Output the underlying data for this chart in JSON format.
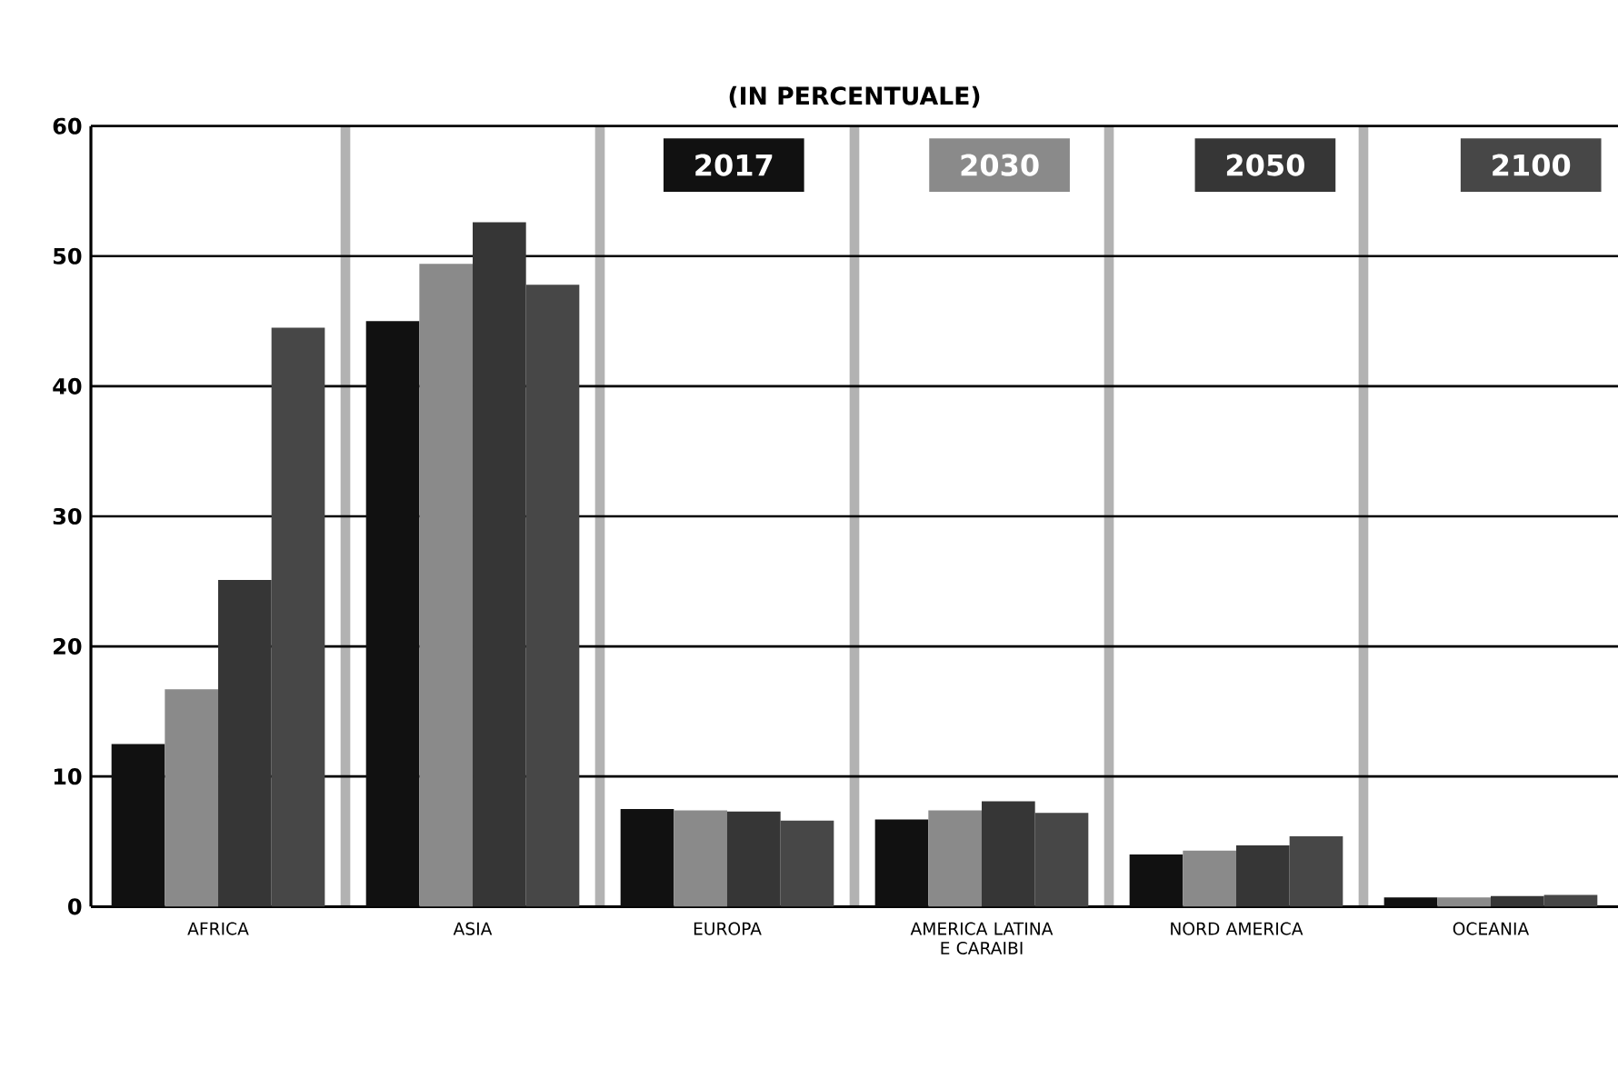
{
  "chart_data": {
    "type": "bar",
    "title": "(IN PERCENTUALE)",
    "categories": [
      "AFRICA",
      "ASIA",
      "EUROPA",
      "AMERICA LATINA E CARAIBI",
      "NORD AMERICA",
      "OCEANIA"
    ],
    "series": [
      {
        "name": "2017",
        "color": "#111111",
        "values": [
          12.5,
          45.0,
          7.5,
          6.7,
          4.0,
          0.7
        ]
      },
      {
        "name": "2030",
        "color": "#8a8a8a",
        "values": [
          16.7,
          49.4,
          7.4,
          7.4,
          4.3,
          0.7
        ]
      },
      {
        "name": "2050",
        "color": "#363636",
        "values": [
          25.1,
          52.6,
          7.3,
          8.1,
          4.7,
          0.8
        ]
      },
      {
        "name": "2100",
        "color": "#474747",
        "values": [
          44.5,
          47.8,
          6.6,
          7.2,
          5.4,
          0.9
        ]
      }
    ],
    "ylim": [
      0,
      60
    ],
    "yticks": [
      0,
      10,
      20,
      30,
      40,
      50,
      60
    ],
    "grid": true,
    "legend": "top right"
  }
}
